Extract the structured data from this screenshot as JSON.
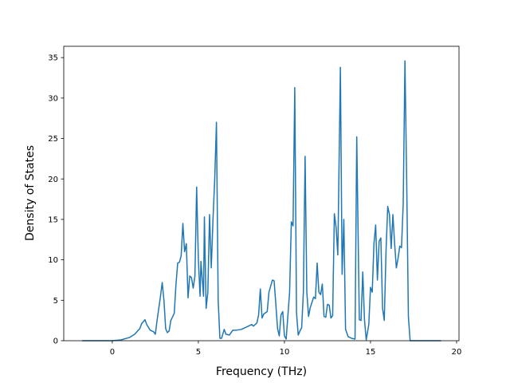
{
  "chart_data": {
    "type": "line",
    "x_label": "Frequency (THz)",
    "y_label": "Density of States",
    "xlim": [
      -2.82,
      20.14
    ],
    "ylim": [
      0,
      36.4
    ],
    "xticks": [
      0,
      5,
      10,
      15,
      20
    ],
    "yticks": [
      0,
      5,
      10,
      15,
      20,
      25,
      30,
      35
    ],
    "x": [
      -1.75,
      0,
      0.5,
      1.0,
      1.3,
      1.6,
      1.7,
      1.9,
      2.0,
      2.2,
      2.4,
      2.5,
      2.6,
      2.8,
      2.9,
      3.0,
      3.1,
      3.2,
      3.3,
      3.4,
      3.6,
      3.7,
      3.8,
      3.9,
      4.0,
      4.1,
      4.2,
      4.3,
      4.4,
      4.5,
      4.6,
      4.7,
      4.8,
      4.9,
      5.0,
      5.1,
      5.15,
      5.3,
      5.35,
      5.45,
      5.55,
      5.65,
      5.75,
      5.85,
      5.95,
      6.05,
      6.15,
      6.25,
      6.35,
      6.5,
      6.6,
      6.8,
      7.0,
      7.2,
      7.5,
      7.8,
      8.1,
      8.2,
      8.4,
      8.5,
      8.6,
      8.7,
      8.8,
      9.0,
      9.1,
      9.3,
      9.4,
      9.5,
      9.6,
      9.7,
      9.8,
      9.9,
      10.0,
      10.1,
      10.3,
      10.4,
      10.5,
      10.6,
      10.7,
      10.8,
      10.9,
      11.0,
      11.1,
      11.2,
      11.3,
      11.4,
      11.5,
      11.7,
      11.8,
      11.9,
      12.0,
      12.1,
      12.2,
      12.3,
      12.4,
      12.5,
      12.6,
      12.7,
      12.8,
      12.9,
      13.0,
      13.1,
      13.25,
      13.35,
      13.45,
      13.55,
      13.7,
      13.9,
      14.1,
      14.2,
      14.35,
      14.45,
      14.55,
      14.65,
      14.75,
      14.9,
      15.0,
      15.1,
      15.2,
      15.3,
      15.4,
      15.5,
      15.6,
      15.7,
      15.8,
      15.9,
      16.0,
      16.1,
      16.2,
      16.3,
      16.4,
      16.5,
      16.6,
      16.7,
      16.8,
      16.9,
      17.0,
      17.1,
      17.2,
      17.3,
      19.1
    ],
    "series": [
      {
        "color": "#1f77b4",
        "values": [
          0,
          0,
          0.1,
          0.4,
          0.8,
          1.5,
          2.1,
          2.6,
          2.0,
          1.3,
          1.1,
          0.8,
          2.5,
          5.5,
          7.2,
          5,
          1.5,
          1.0,
          1.2,
          2.5,
          3.4,
          7,
          9.6,
          9.7,
          10.5,
          14.5,
          11,
          12,
          5.3,
          8,
          7.8,
          6.5,
          8,
          19,
          10,
          5.5,
          9.8,
          5.5,
          15.3,
          4,
          6,
          15.6,
          9,
          15,
          20,
          27,
          5,
          0.3,
          0.3,
          1.4,
          0.8,
          0.7,
          1.3,
          1.3,
          1.4,
          1.7,
          2,
          1.8,
          2.2,
          3.2,
          6.4,
          2.8,
          3.3,
          3.6,
          6,
          7.5,
          7.4,
          4.5,
          1.5,
          0.6,
          3.2,
          3.6,
          0.6,
          0.2,
          6,
          14.7,
          14.2,
          31.3,
          3.5,
          0.7,
          1.2,
          1.6,
          6,
          22.8,
          6,
          3,
          4.1,
          5.4,
          5.2,
          9.6,
          6,
          5.7,
          7,
          3,
          2.9,
          4.5,
          4.4,
          2.8,
          3.1,
          15.7,
          14,
          10.6,
          33.8,
          8.2,
          15,
          1.4,
          0.5,
          0.3,
          0.2,
          25.2,
          2.6,
          2.5,
          8.5,
          2.6,
          0.1,
          2,
          6.6,
          6,
          12,
          14.3,
          7.5,
          12.3,
          12.7,
          4,
          2.5,
          11,
          16.6,
          15.6,
          11.4,
          15.6,
          12,
          9,
          10.2,
          11.7,
          11.5,
          17,
          34.6,
          20,
          3,
          0,
          0
        ]
      }
    ]
  }
}
